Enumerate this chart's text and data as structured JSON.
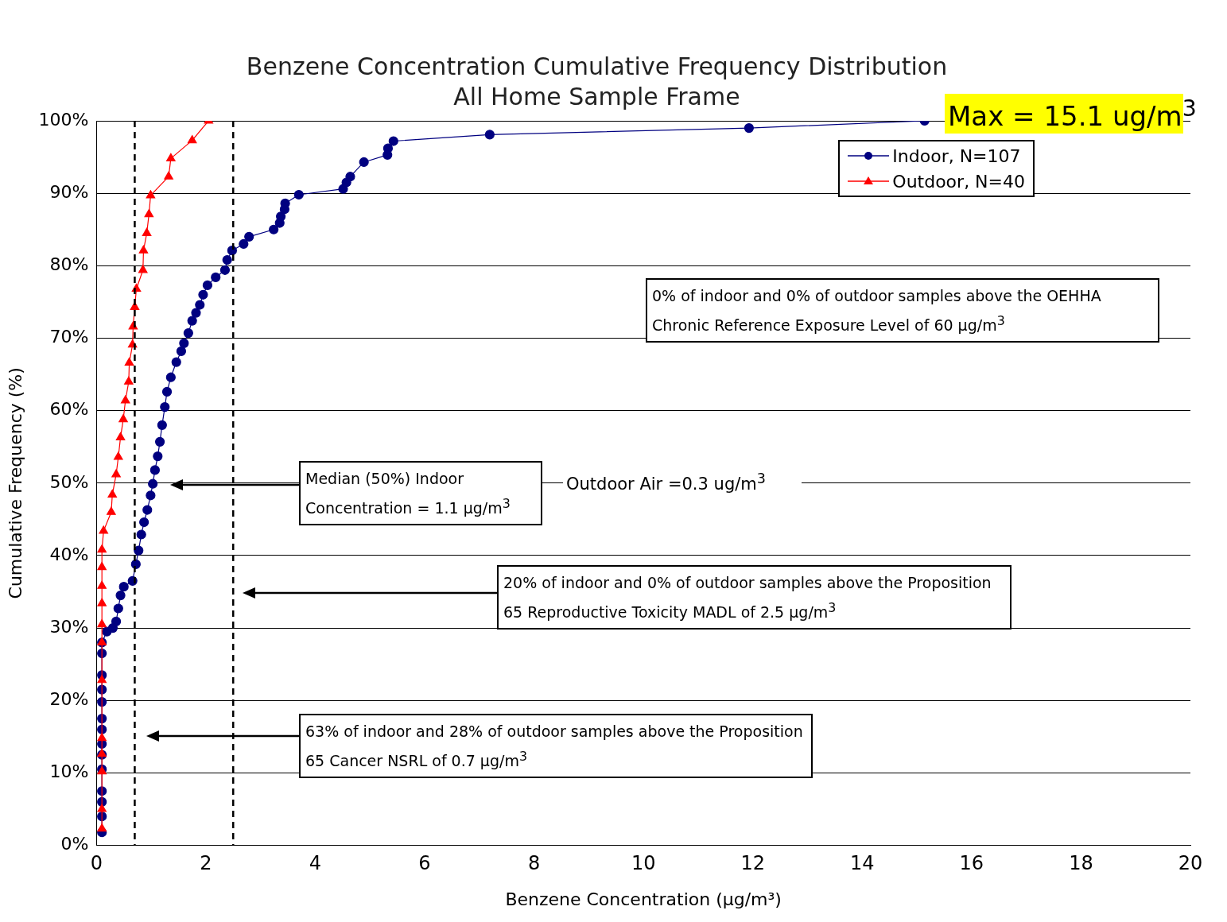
{
  "chart_data": {
    "type": "line",
    "title": "Benzene Concentration Cumulative Frequency Distribution",
    "subtitle": "All Home Sample Frame",
    "xlabel": "Benzene Concentration (μg/m³)",
    "ylabel": "Cumulative Frequency (%)",
    "xlim": [
      0,
      20
    ],
    "xticks": [
      0,
      2,
      4,
      6,
      8,
      10,
      12,
      14,
      16,
      18,
      20
    ],
    "ylim": [
      0,
      100
    ],
    "yticks": [
      {
        "value": 0,
        "label": "0%"
      },
      {
        "value": 10,
        "label": "10%"
      },
      {
        "value": 20,
        "label": "20%"
      },
      {
        "value": 30,
        "label": "30%"
      },
      {
        "value": 40,
        "label": "40%"
      },
      {
        "value": 50,
        "label": "50%"
      },
      {
        "value": 60,
        "label": "60%"
      },
      {
        "value": 70,
        "label": "70%"
      },
      {
        "value": 80,
        "label": "80%"
      },
      {
        "value": 90,
        "label": "90%"
      },
      {
        "value": 100,
        "label": "100%"
      }
    ],
    "grid": "y",
    "legend": "top right",
    "series": [
      {
        "name": "Indoor, N=107",
        "color": "#000080",
        "marker": "circle",
        "x": [
          0.1,
          0.1,
          0.1,
          0.1,
          0.1,
          0.1,
          0.1,
          0.1,
          0.1,
          0.1,
          0.1,
          0.1,
          0.1,
          0.1,
          0.19,
          0.3,
          0.36,
          0.4,
          0.44,
          0.5,
          0.66,
          0.72,
          0.77,
          0.82,
          0.87,
          0.93,
          0.99,
          1.03,
          1.07,
          1.12,
          1.16,
          1.2,
          1.25,
          1.29,
          1.36,
          1.46,
          1.55,
          1.6,
          1.68,
          1.75,
          1.82,
          1.89,
          1.95,
          2.03,
          2.18,
          2.35,
          2.39,
          2.48,
          2.69,
          2.79,
          3.24,
          3.35,
          3.37,
          3.44,
          3.45,
          3.7,
          4.51,
          4.57,
          4.64,
          4.89,
          5.32,
          5.33,
          5.43,
          7.19,
          11.93,
          15.14
        ],
        "values": [
          1.8,
          4,
          6,
          7.5,
          10.5,
          12.5,
          14,
          16,
          17.5,
          19.8,
          21.5,
          23.5,
          26.5,
          28,
          29.5,
          30,
          30.9,
          32.7,
          34.5,
          35.7,
          36.5,
          38.8,
          40.7,
          42.9,
          44.6,
          46.3,
          48.3,
          49.9,
          51.8,
          53.7,
          55.7,
          58,
          60.5,
          62.6,
          64.6,
          66.7,
          68.2,
          69.3,
          70.7,
          72.4,
          73.5,
          74.6,
          76,
          77.3,
          78.4,
          79.4,
          80.8,
          82.1,
          83,
          84,
          85,
          85.9,
          86.8,
          87.8,
          88.6,
          89.8,
          90.6,
          91.5,
          92.3,
          94.3,
          95.3,
          96.2,
          97.2,
          98.1,
          99,
          100
        ]
      },
      {
        "name": "Outdoor, N=40",
        "color": "#ff0000",
        "marker": "triangle",
        "x": [
          0.1,
          0.1,
          0.1,
          0.1,
          0.1,
          0.1,
          0.1,
          0.1,
          0.1,
          0.1,
          0.1,
          0.1,
          0.13,
          0.27,
          0.29,
          0.36,
          0.4,
          0.44,
          0.49,
          0.53,
          0.59,
          0.6,
          0.66,
          0.67,
          0.7,
          0.73,
          0.85,
          0.86,
          0.92,
          0.96,
          0.99,
          1.32,
          1.36,
          1.75,
          2.05
        ],
        "values": [
          2.3,
          5,
          10.2,
          12.6,
          14.8,
          22.8,
          28,
          30.5,
          33.4,
          35.8,
          38.4,
          40.8,
          43.4,
          46,
          48.4,
          51.2,
          53.6,
          56.3,
          58.8,
          61.4,
          64,
          66.6,
          69.1,
          71.6,
          74.3,
          76.8,
          79.4,
          82.1,
          84.5,
          87.1,
          89.7,
          92.3,
          94.8,
          97.3,
          100
        ]
      }
    ],
    "ref_lines": [
      {
        "axis": "x",
        "value": 0.7,
        "color": "#000000",
        "line_style": "dashed"
      },
      {
        "axis": "x",
        "value": 2.5,
        "color": "#000000",
        "line_style": "dashed"
      }
    ],
    "annotations": [
      "Max = 15.1 ug/m$^{3}$",
      "0% of indoor and 0% of outdoor samples above the OEHHA Chronic Reference Exposure Level of 60 μg/m$^{3}$",
      "Median (50%) Indoor Concentration = 1.1 μg/m$^{3}$",
      "Outdoor Air =0.3 ug/m$^{3}$",
      "20% of indoor and 0% of outdoor samples above the Proposition 65 Reproductive Toxicity MADL of 2.5 μg/m$^{3}$",
      "63% of indoor and 28% of outdoor samples above the Proposition 65 Cancer NSRL of 0.7 μg/m$^{3}$"
    ]
  }
}
